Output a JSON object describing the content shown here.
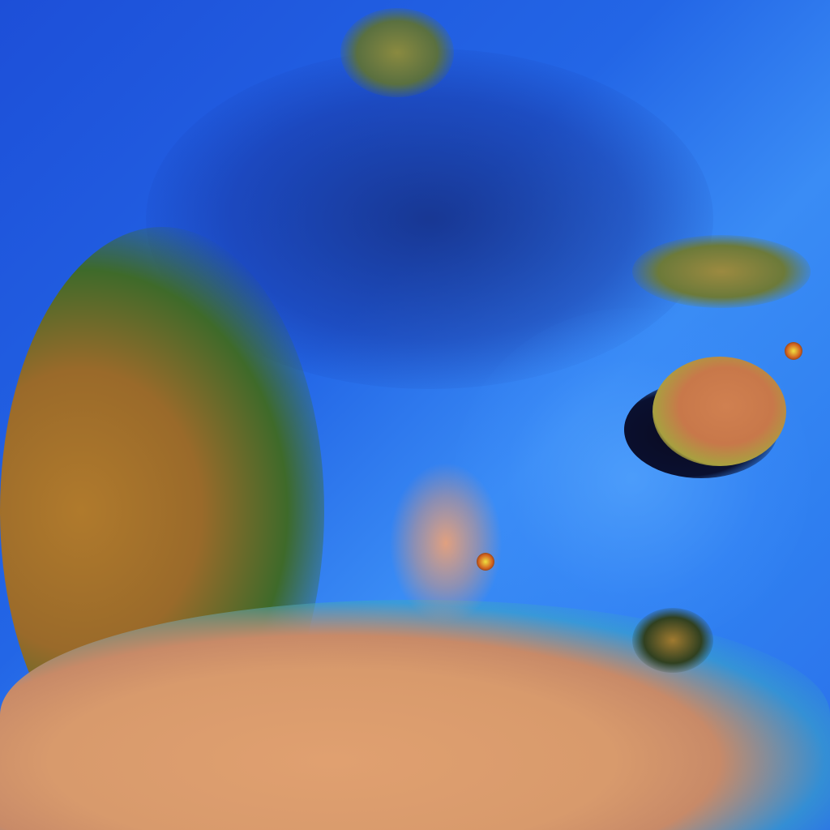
{
  "image": {
    "kind": "false-color satellite imagery",
    "colors": {
      "water": "#2a6ee8",
      "dark_water": "#16307a",
      "land_brown": "#b07a2c",
      "land_green": "#3e6a2a",
      "land_pink": "#e0a070",
      "island_shadow": "#0a0a20",
      "hot_spot": "#f0e040"
    }
  }
}
